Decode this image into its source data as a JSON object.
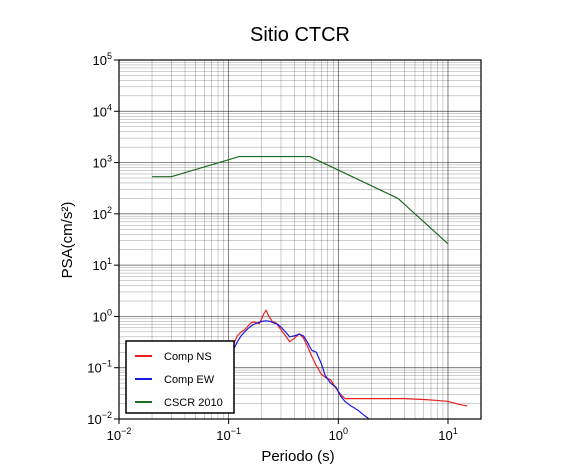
{
  "chart_data": {
    "type": "line",
    "title": "Sitio CTCR",
    "xlabel": "Periodo (s)",
    "ylabel": "PSA(cm/s²)",
    "xscale": "log",
    "yscale": "log",
    "xlim": [
      0.01,
      20
    ],
    "ylim": [
      0.01,
      100000
    ],
    "grid": true,
    "legend_position": "bottom-left",
    "x_ticks": [
      {
        "base": "10",
        "exp": "−2"
      },
      {
        "base": "10",
        "exp": "−1"
      },
      {
        "base": "10",
        "exp": "0"
      },
      {
        "base": "10",
        "exp": "1"
      }
    ],
    "y_ticks": [
      {
        "base": "10",
        "exp": "−2"
      },
      {
        "base": "10",
        "exp": "−1"
      },
      {
        "base": "10",
        "exp": "0"
      },
      {
        "base": "10",
        "exp": "1"
      },
      {
        "base": "10",
        "exp": "2"
      },
      {
        "base": "10",
        "exp": "3"
      },
      {
        "base": "10",
        "exp": "4"
      },
      {
        "base": "10",
        "exp": "5"
      }
    ],
    "series": [
      {
        "name": "Comp NS",
        "color": "#e8201e",
        "points": [
          [
            0.1,
            0.2
          ],
          [
            0.11,
            0.28
          ],
          [
            0.12,
            0.42
          ],
          [
            0.13,
            0.5
          ],
          [
            0.14,
            0.55
          ],
          [
            0.15,
            0.65
          ],
          [
            0.16,
            0.75
          ],
          [
            0.17,
            0.78
          ],
          [
            0.18,
            0.75
          ],
          [
            0.19,
            0.72
          ],
          [
            0.2,
            0.9
          ],
          [
            0.21,
            1.15
          ],
          [
            0.22,
            1.32
          ],
          [
            0.23,
            1.05
          ],
          [
            0.25,
            0.8
          ],
          [
            0.27,
            0.75
          ],
          [
            0.3,
            0.55
          ],
          [
            0.33,
            0.42
          ],
          [
            0.36,
            0.32
          ],
          [
            0.4,
            0.38
          ],
          [
            0.44,
            0.46
          ],
          [
            0.48,
            0.38
          ],
          [
            0.52,
            0.27
          ],
          [
            0.57,
            0.17
          ],
          [
            0.63,
            0.11
          ],
          [
            0.7,
            0.075
          ],
          [
            0.76,
            0.065
          ],
          [
            0.85,
            0.058
          ],
          [
            0.95,
            0.04
          ],
          [
            1.05,
            0.03
          ],
          [
            1.15,
            0.025
          ],
          [
            2.0,
            0.025
          ],
          [
            4.0,
            0.025
          ],
          [
            6.0,
            0.024
          ],
          [
            8.0,
            0.023
          ],
          [
            10.0,
            0.022
          ],
          [
            13.0,
            0.019
          ],
          [
            15.0,
            0.018
          ]
        ]
      },
      {
        "name": "Comp EW",
        "color": "#1a1adf",
        "points": [
          [
            0.1,
            0.15
          ],
          [
            0.11,
            0.22
          ],
          [
            0.12,
            0.32
          ],
          [
            0.13,
            0.42
          ],
          [
            0.14,
            0.5
          ],
          [
            0.15,
            0.58
          ],
          [
            0.16,
            0.65
          ],
          [
            0.17,
            0.7
          ],
          [
            0.18,
            0.74
          ],
          [
            0.2,
            0.8
          ],
          [
            0.22,
            0.82
          ],
          [
            0.24,
            0.8
          ],
          [
            0.26,
            0.74
          ],
          [
            0.28,
            0.7
          ],
          [
            0.3,
            0.62
          ],
          [
            0.33,
            0.5
          ],
          [
            0.36,
            0.4
          ],
          [
            0.4,
            0.42
          ],
          [
            0.44,
            0.45
          ],
          [
            0.48,
            0.42
          ],
          [
            0.52,
            0.32
          ],
          [
            0.57,
            0.22
          ],
          [
            0.63,
            0.2
          ],
          [
            0.7,
            0.12
          ],
          [
            0.76,
            0.07
          ],
          [
            0.85,
            0.05
          ],
          [
            0.95,
            0.042
          ],
          [
            1.05,
            0.028
          ],
          [
            1.15,
            0.022
          ],
          [
            1.3,
            0.018
          ],
          [
            1.5,
            0.015
          ],
          [
            1.7,
            0.012
          ],
          [
            1.85,
            0.0105
          ],
          [
            1.9,
            0.01
          ]
        ]
      },
      {
        "name": "CSCR 2010",
        "color": "#1f6b1f",
        "points": [
          [
            0.02,
            530
          ],
          [
            0.03,
            530
          ],
          [
            0.125,
            1310
          ],
          [
            0.55,
            1310
          ],
          [
            3.5,
            200
          ],
          [
            10.0,
            26
          ]
        ]
      }
    ]
  }
}
